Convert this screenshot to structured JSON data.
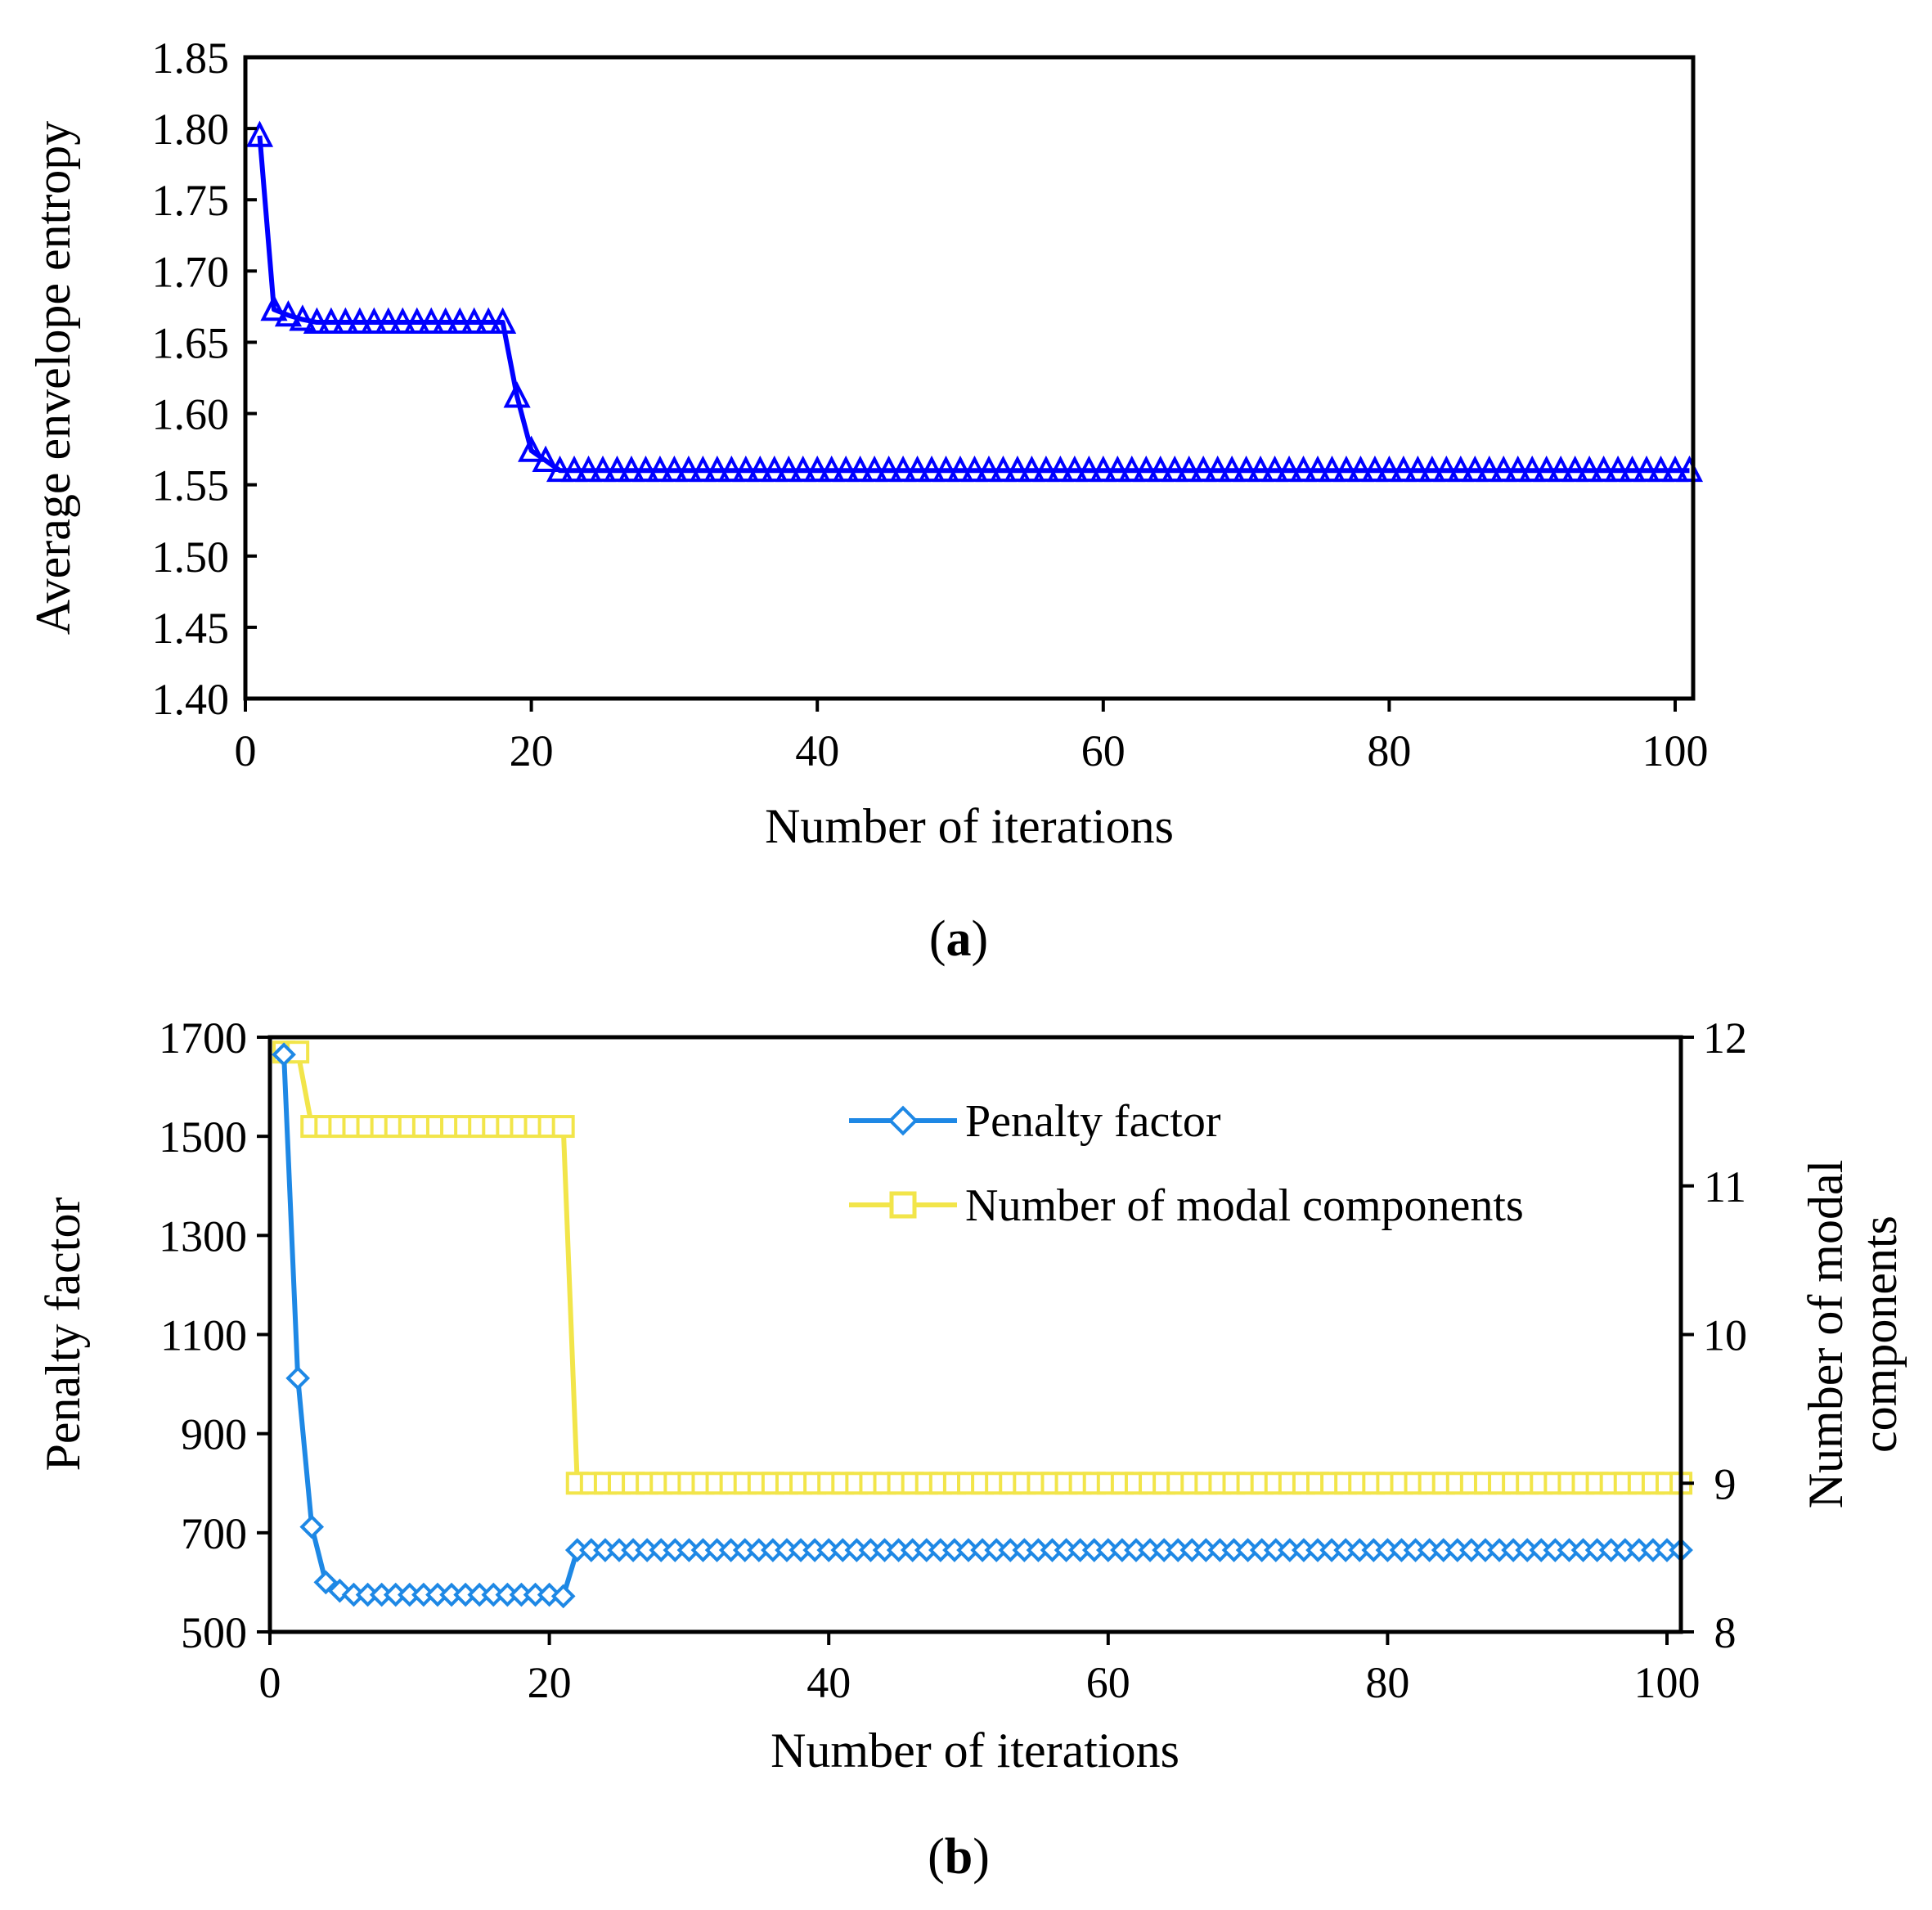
{
  "colors": {
    "entropy": "#0000FF",
    "penalty": "#1E88E5",
    "modes": "#F2E54A"
  },
  "icons": {
    "entropy_marker": "triangle-marker",
    "penalty_marker": "diamond-marker",
    "modes_marker": "square-marker"
  },
  "chart_data": [
    {
      "panel": "(a)",
      "caption_text": "a",
      "type": "line",
      "title": "",
      "xlabel": "Number of iterations",
      "ylabel": "Average envelope entropy",
      "xlim": [
        0,
        100
      ],
      "ylim": [
        1.4,
        1.85
      ],
      "xticks": [
        0,
        20,
        40,
        60,
        80,
        100
      ],
      "xtick_labels": [
        "0",
        "20",
        "40",
        "60",
        "80",
        "100"
      ],
      "yticks": [
        1.4,
        1.45,
        1.5,
        1.55,
        1.6,
        1.65,
        1.7,
        1.75,
        1.8,
        1.85
      ],
      "ytick_labels": [
        "1.40",
        "1.45",
        "1.50",
        "1.55",
        "1.60",
        "1.65",
        "1.70",
        "1.75",
        "1.80",
        "1.85"
      ],
      "series": [
        {
          "name": "Average envelope entropy",
          "marker": "triangle",
          "x": [
            1,
            2,
            3,
            4,
            5,
            6,
            7,
            8,
            9,
            10,
            11,
            12,
            13,
            14,
            15,
            16,
            17,
            18,
            19,
            20,
            21,
            22,
            23,
            24,
            25,
            26,
            27,
            28,
            29,
            30,
            31,
            32,
            33,
            34,
            35,
            36,
            37,
            38,
            39,
            40,
            41,
            42,
            43,
            44,
            45,
            46,
            47,
            48,
            49,
            50,
            51,
            52,
            53,
            54,
            55,
            56,
            57,
            58,
            59,
            60,
            61,
            62,
            63,
            64,
            65,
            66,
            67,
            68,
            69,
            70,
            71,
            72,
            73,
            74,
            75,
            76,
            77,
            78,
            79,
            80,
            81,
            82,
            83,
            84,
            85,
            86,
            87,
            88,
            89,
            90,
            91,
            92,
            93,
            94,
            95,
            96,
            97,
            98,
            99,
            100,
            101
          ],
          "y": [
            1.795,
            1.673,
            1.669,
            1.666,
            1.664,
            1.664,
            1.664,
            1.664,
            1.664,
            1.664,
            1.664,
            1.664,
            1.664,
            1.664,
            1.664,
            1.664,
            1.664,
            1.664,
            1.612,
            1.574,
            1.567,
            1.56,
            1.56,
            1.56,
            1.56,
            1.56,
            1.56,
            1.56,
            1.56,
            1.56,
            1.56,
            1.56,
            1.56,
            1.56,
            1.56,
            1.56,
            1.56,
            1.56,
            1.56,
            1.56,
            1.56,
            1.56,
            1.56,
            1.56,
            1.56,
            1.56,
            1.56,
            1.56,
            1.56,
            1.56,
            1.56,
            1.56,
            1.56,
            1.56,
            1.56,
            1.56,
            1.56,
            1.56,
            1.56,
            1.56,
            1.56,
            1.56,
            1.56,
            1.56,
            1.56,
            1.56,
            1.56,
            1.56,
            1.56,
            1.56,
            1.56,
            1.56,
            1.56,
            1.56,
            1.56,
            1.56,
            1.56,
            1.56,
            1.56,
            1.56,
            1.56,
            1.56,
            1.56,
            1.56,
            1.56,
            1.56,
            1.56,
            1.56,
            1.56,
            1.56,
            1.56,
            1.56,
            1.56,
            1.56,
            1.56,
            1.56,
            1.56,
            1.56,
            1.56,
            1.56,
            1.56
          ]
        }
      ]
    },
    {
      "panel": "(b)",
      "caption_text": "b",
      "type": "line",
      "title": "",
      "xlabel": "Number of iterations",
      "ylabel": "Penalty factor",
      "y2label_line1": "Number of modal",
      "y2label_line2": "components",
      "xlim": [
        0,
        100
      ],
      "ylim": [
        500,
        1700
      ],
      "y2lim": [
        8,
        12
      ],
      "xticks": [
        0,
        20,
        40,
        60,
        80,
        100
      ],
      "xtick_labels": [
        "0",
        "20",
        "40",
        "60",
        "80",
        "100"
      ],
      "yticks": [
        500,
        700,
        900,
        1100,
        1300,
        1500,
        1700
      ],
      "ytick_labels": [
        "500",
        "700",
        "900",
        "1100",
        "1300",
        "1500",
        "1700"
      ],
      "y2ticks": [
        8,
        9,
        10,
        11,
        12
      ],
      "y2tick_labels": [
        "8",
        "9",
        "10",
        "11",
        "12"
      ],
      "legend_position": "top-right",
      "series": [
        {
          "name": "Penalty factor",
          "axis": "left",
          "marker": "diamond",
          "x": [
            1,
            2,
            3,
            4,
            5,
            6,
            7,
            8,
            9,
            10,
            11,
            12,
            13,
            14,
            15,
            16,
            17,
            18,
            19,
            20,
            21,
            22,
            23,
            24,
            25,
            26,
            27,
            28,
            29,
            30,
            31,
            32,
            33,
            34,
            35,
            36,
            37,
            38,
            39,
            40,
            41,
            42,
            43,
            44,
            45,
            46,
            47,
            48,
            49,
            50,
            51,
            52,
            53,
            54,
            55,
            56,
            57,
            58,
            59,
            60,
            61,
            62,
            63,
            64,
            65,
            66,
            67,
            68,
            69,
            70,
            71,
            72,
            73,
            74,
            75,
            76,
            77,
            78,
            79,
            80,
            81,
            82,
            83,
            84,
            85,
            86,
            87,
            88,
            89,
            90,
            91,
            92,
            93,
            94,
            95,
            96,
            97,
            98,
            99,
            100,
            101
          ],
          "y": [
            1665,
            1012,
            712,
            600,
            583,
            575,
            575,
            575,
            575,
            575,
            575,
            575,
            575,
            575,
            575,
            575,
            575,
            575,
            575,
            575,
            572,
            665,
            665,
            665,
            665,
            665,
            665,
            665,
            665,
            665,
            665,
            665,
            665,
            665,
            665,
            665,
            665,
            665,
            665,
            665,
            665,
            665,
            665,
            665,
            665,
            665,
            665,
            665,
            665,
            665,
            665,
            665,
            665,
            665,
            665,
            665,
            665,
            665,
            665,
            665,
            665,
            665,
            665,
            665,
            665,
            665,
            665,
            665,
            665,
            665,
            665,
            665,
            665,
            665,
            665,
            665,
            665,
            665,
            665,
            665,
            665,
            665,
            665,
            665,
            665,
            665,
            665,
            665,
            665,
            665,
            665,
            665,
            665,
            665,
            665,
            665,
            665,
            665,
            665,
            665,
            665
          ]
        },
        {
          "name": "Number of modal components",
          "axis": "right",
          "marker": "square",
          "x": [
            1,
            2,
            3,
            4,
            5,
            6,
            7,
            8,
            9,
            10,
            11,
            12,
            13,
            14,
            15,
            16,
            17,
            18,
            19,
            20,
            21,
            22,
            23,
            24,
            25,
            26,
            27,
            28,
            29,
            30,
            31,
            32,
            33,
            34,
            35,
            36,
            37,
            38,
            39,
            40,
            41,
            42,
            43,
            44,
            45,
            46,
            47,
            48,
            49,
            50,
            51,
            52,
            53,
            54,
            55,
            56,
            57,
            58,
            59,
            60,
            61,
            62,
            63,
            64,
            65,
            66,
            67,
            68,
            69,
            70,
            71,
            72,
            73,
            74,
            75,
            76,
            77,
            78,
            79,
            80,
            81,
            82,
            83,
            84,
            85,
            86,
            87,
            88,
            89,
            90,
            91,
            92,
            93,
            94,
            95,
            96,
            97,
            98,
            99,
            100,
            101
          ],
          "y": [
            11.9,
            11.9,
            11.4,
            11.4,
            11.4,
            11.4,
            11.4,
            11.4,
            11.4,
            11.4,
            11.4,
            11.4,
            11.4,
            11.4,
            11.4,
            11.4,
            11.4,
            11.4,
            11.4,
            11.4,
            11.4,
            9,
            9,
            9,
            9,
            9,
            9,
            9,
            9,
            9,
            9,
            9,
            9,
            9,
            9,
            9,
            9,
            9,
            9,
            9,
            9,
            9,
            9,
            9,
            9,
            9,
            9,
            9,
            9,
            9,
            9,
            9,
            9,
            9,
            9,
            9,
            9,
            9,
            9,
            9,
            9,
            9,
            9,
            9,
            9,
            9,
            9,
            9,
            9,
            9,
            9,
            9,
            9,
            9,
            9,
            9,
            9,
            9,
            9,
            9,
            9,
            9,
            9,
            9,
            9,
            9,
            9,
            9,
            9,
            9,
            9,
            9,
            9,
            9,
            9,
            9,
            9,
            9,
            9,
            9,
            9
          ]
        }
      ]
    }
  ]
}
